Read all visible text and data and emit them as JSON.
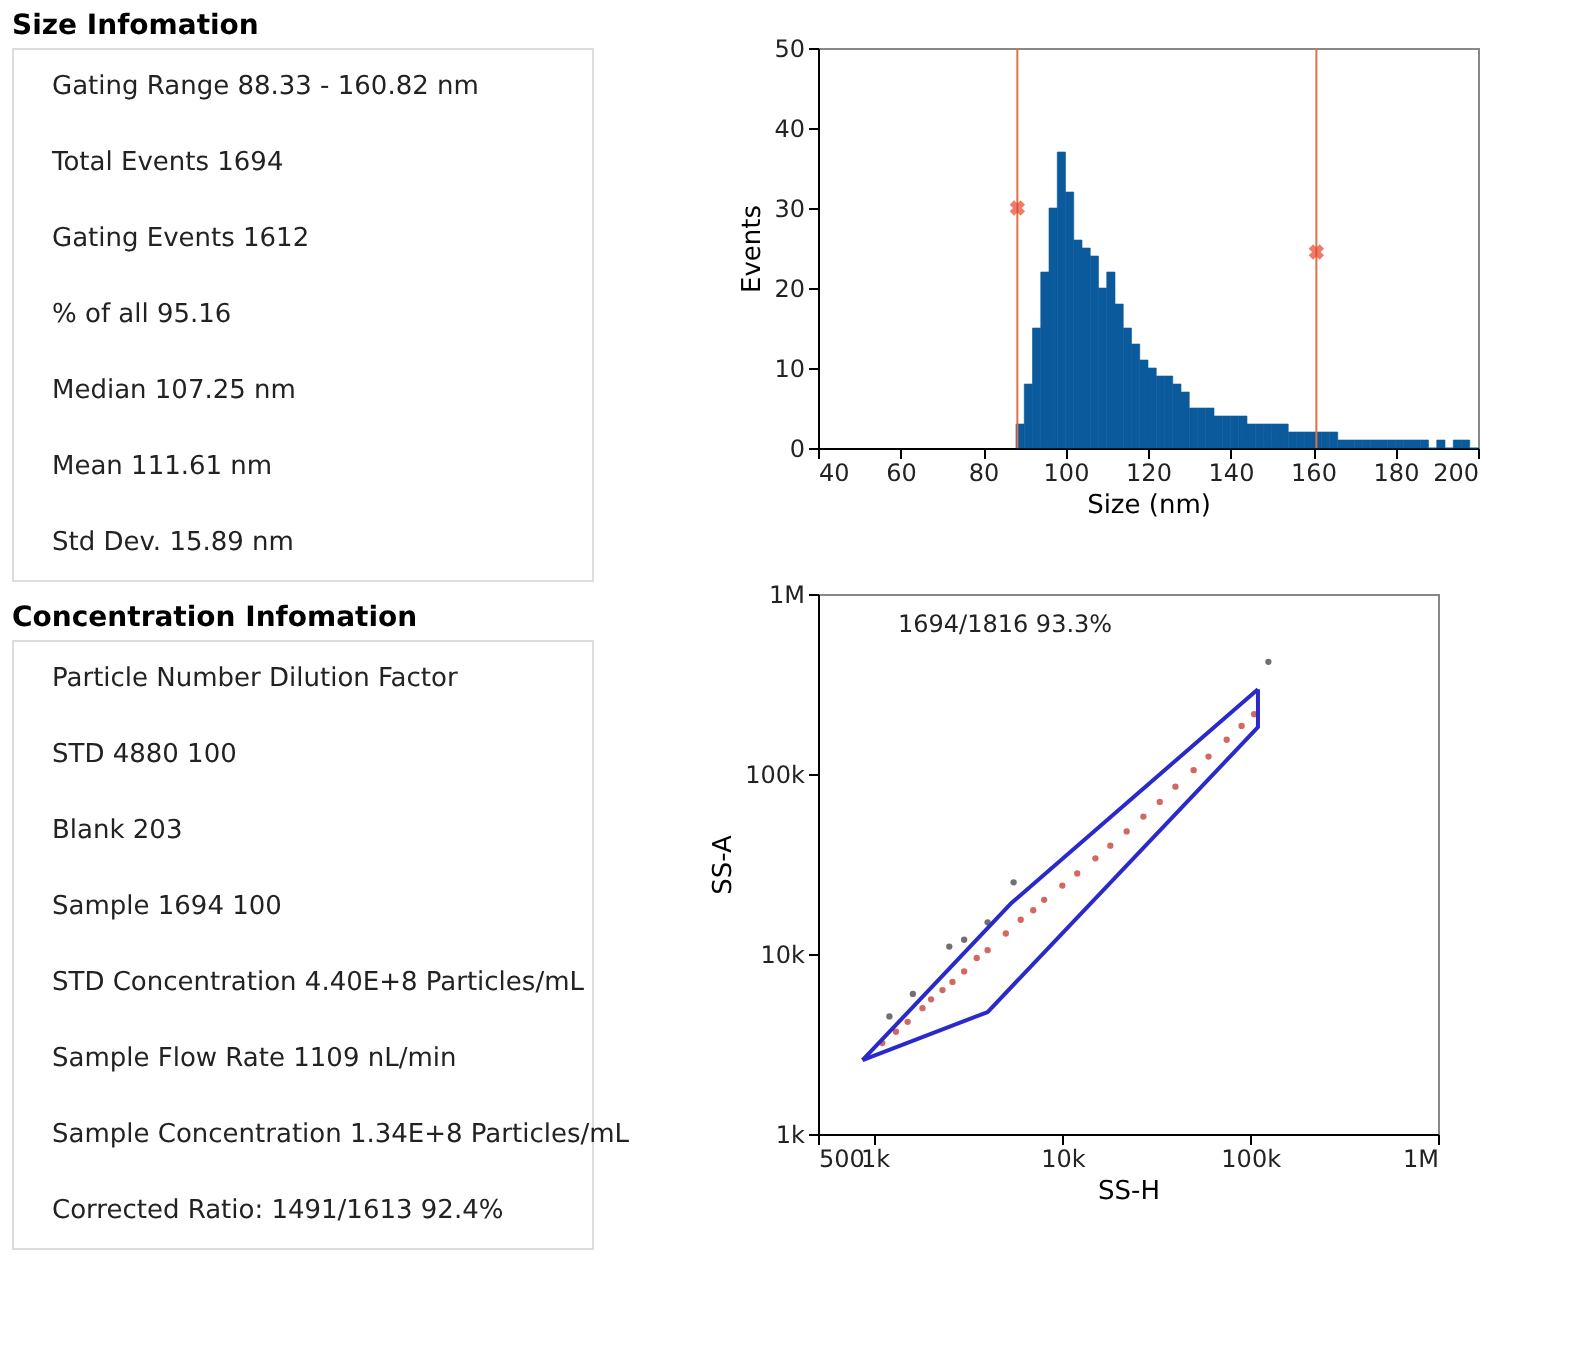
{
  "chart_data": [
    {
      "type": "other",
      "title": "Size Infomation",
      "annotations": [
        "Gating Range  88.33 - 160.82 nm",
        "Total Events  1694",
        "Gating Events  1612",
        "% of all  95.16",
        "Median  107.25 nm",
        "Mean  111.61 nm",
        "Std Dev.  15.89 nm"
      ]
    },
    {
      "type": "other",
      "title": "Concentration Infomation",
      "annotations": [
        "Particle Number    Dilution Factor",
        "STD  4880  100",
        "Blank  203",
        "Sample  1694  100",
        "STD Concentration  4.40E+8  Particles/mL",
        "Sample Flow Rate  1109  nL/min",
        "Sample Concentration  1.34E+8  Particles/mL",
        "Corrected Ratio:  1491/1613  92.4%"
      ]
    },
    {
      "type": "histogram",
      "xlabel": "Size (nm)",
      "ylabel": "Events",
      "color": "#0b5a9c",
      "bins": [
        88,
        90,
        92,
        94,
        96,
        98,
        100,
        102,
        104,
        106,
        108,
        110,
        112,
        114,
        116,
        118,
        120,
        122,
        124,
        126,
        128,
        130,
        132,
        134,
        136,
        138,
        140,
        142,
        144,
        146,
        148,
        150,
        152,
        154,
        156,
        158,
        160,
        162,
        164,
        166,
        168,
        170,
        172,
        174,
        176,
        178,
        180,
        182,
        184,
        186,
        188,
        190,
        192,
        194,
        196,
        198,
        200
      ],
      "values": [
        3,
        8,
        15,
        22,
        30,
        37,
        32,
        26,
        25,
        24,
        20,
        22,
        18,
        15,
        13,
        11,
        10,
        9,
        9,
        8,
        7,
        5,
        5,
        5,
        4,
        4,
        4,
        4,
        3,
        3,
        3,
        3,
        3,
        2,
        2,
        2,
        2,
        2,
        2,
        1,
        1,
        1,
        1,
        1,
        1,
        1,
        1,
        1,
        1,
        1,
        0,
        1,
        0,
        1,
        1,
        0
      ],
      "series": [
        {
          "type": "scatter",
          "marker": "cross",
          "color": "#e8452a",
          "x": [
            88.33,
            160.82
          ],
          "values": [
            30,
            24.5
          ]
        }
      ],
      "ref_lines": [
        {
          "axis": "x",
          "value": 88.33,
          "color": "#e0704a"
        },
        {
          "axis": "x",
          "value": 160.82,
          "color": "#e0704a"
        }
      ],
      "xlim": [
        40,
        200
      ],
      "ylim": [
        0,
        50
      ],
      "xticks": [
        40,
        60,
        80,
        100,
        120,
        140,
        160,
        180,
        200
      ],
      "yticks": [
        0,
        10,
        20,
        30,
        40,
        50
      ],
      "grid": false
    },
    {
      "type": "scatter",
      "xlabel": "SS-H",
      "ylabel": "SS-A",
      "log": "xy",
      "grid": false,
      "annotations": [
        "1694/1816  93.3%"
      ],
      "series": [
        {
          "color": "#c0281e",
          "marker": "circle",
          "x": [
            1100,
            1300,
            1500,
            1800,
            2000,
            2300,
            2600,
            3000,
            3500,
            4000,
            5000,
            6000,
            7000,
            8000,
            10000,
            12000,
            15000,
            18000,
            22000,
            27000,
            33000,
            40000,
            50000,
            60000,
            75000,
            90000,
            105000
          ],
          "values": [
            3200,
            3700,
            4200,
            5000,
            5600,
            6300,
            7000,
            8000,
            9500,
            10500,
            13000,
            15500,
            17500,
            20000,
            24000,
            28000,
            34000,
            40000,
            48000,
            58000,
            70000,
            85000,
            105000,
            125000,
            155000,
            185000,
            215000
          ]
        },
        {
          "color": "#333333",
          "marker": "circle",
          "x": [
            1200,
            1600,
            2500,
            3000,
            4000,
            5500,
            125000
          ],
          "values": [
            4500,
            6000,
            11000,
            12000,
            15000,
            25000,
            420000
          ]
        },
        {
          "type": "line",
          "color": "#2a2acb",
          "x": [
            863,
            5300,
            110000
          ],
          "values": [
            2570,
            19000,
            296000
          ]
        },
        {
          "type": "line",
          "color": "#2a2acb",
          "x": [
            863,
            4000,
            110000,
            110000
          ],
          "values": [
            2570,
            4760,
            182000,
            296000
          ]
        }
      ],
      "xlim": [
        500,
        1000000
      ],
      "ylim": [
        1000,
        1000000
      ],
      "xticks": [
        500,
        {
          "value": 1000,
          "label": "1k"
        },
        {
          "value": 10000,
          "label": "10k"
        },
        {
          "value": 100000,
          "label": "100k"
        },
        {
          "value": 1000000,
          "label": "1M"
        }
      ],
      "yticks": [
        {
          "value": 1000,
          "label": "1k"
        },
        {
          "value": 10000,
          "label": "10k"
        },
        {
          "value": 100000,
          "label": "100k"
        },
        {
          "value": 1000000,
          "label": "1M"
        }
      ]
    }
  ]
}
